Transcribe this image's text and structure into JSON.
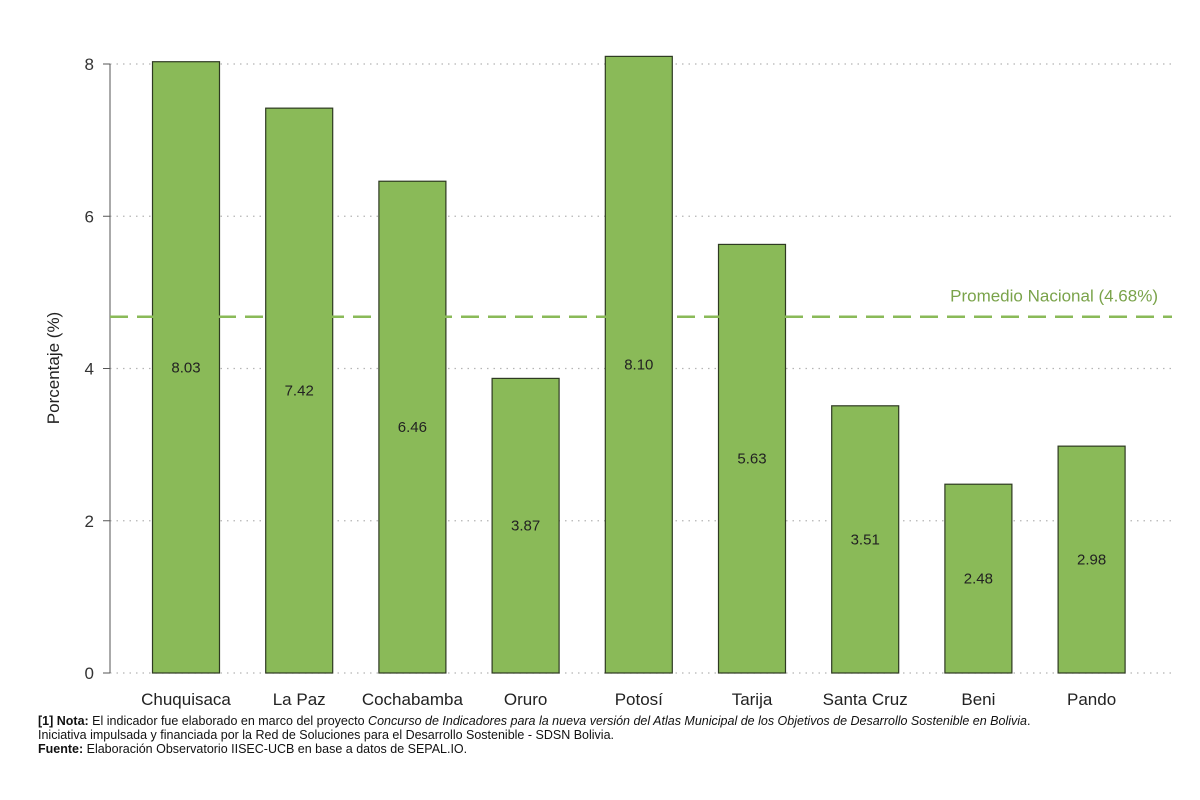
{
  "chart_data": {
    "type": "bar",
    "categories": [
      "Chuquisaca",
      "La Paz",
      "Cochabamba",
      "Oruro",
      "Potosí",
      "Tarija",
      "Santa Cruz",
      "Beni",
      "Pando"
    ],
    "values": [
      8.03,
      7.42,
      6.46,
      3.87,
      8.1,
      5.63,
      3.51,
      2.48,
      2.98
    ],
    "value_labels": [
      "8.03",
      "7.42",
      "6.46",
      "3.87",
      "8.10",
      "5.63",
      "3.51",
      "2.48",
      "2.98"
    ],
    "ylabel": "Porcentaje (%)",
    "xlabel": "",
    "ylim": [
      0,
      8
    ],
    "yticks": [
      0,
      2,
      4,
      6,
      8
    ],
    "ytick_labels": [
      "0",
      "2",
      "4",
      "6",
      "8"
    ],
    "grid": "horizontal dotted",
    "bar_color": "#8aba58",
    "bar_edge_color": "#2e3a22",
    "reference_line": {
      "value": 4.68,
      "label": "Promedio Nacional (4.68%)",
      "color": "#8aba58",
      "style": "dashed"
    }
  },
  "footnote": {
    "line1_bold": "[1] Nota:",
    "line1_text": " El indicador fue elaborado en marco del proyecto ",
    "line1_italic": "Concurso de Indicadores para la nueva versión del Atlas Municipal de los Objetivos de Desarrollo Sostenible en Bolivia",
    "line1_end": ".",
    "line2": "Iniciativa impulsada y financiada por la Red de Soluciones para el Desarrollo Sostenible - SDSN Bolivia.",
    "line3_bold": "Fuente:",
    "line3_text": " Elaboración Observatorio IISEC-UCB en base a datos de SEPAL.IO."
  }
}
